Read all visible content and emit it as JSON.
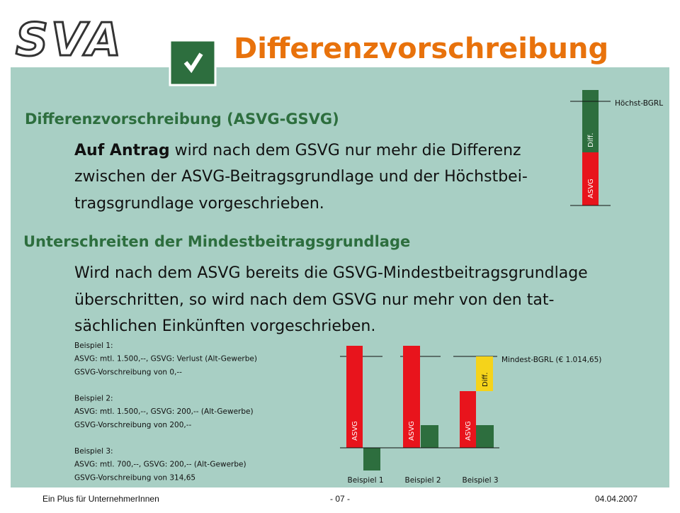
{
  "header": {
    "logo": "SVA",
    "title": "Differenzvorschreibung"
  },
  "sections": [
    {
      "heading": "Differenzvorschreibung (ASVG-GSVG)",
      "lead": "Auf Antrag",
      "lines": [
        " wird nach dem GSVG nur mehr die Differenz",
        "zwischen der ASVG-Beitragsgrundlage und der Höchstbei-",
        "tragsgrundlage vorgeschrieben."
      ]
    },
    {
      "heading": "Unterschreiten der Mindestbeitragsgrundlage",
      "lines": [
        "Wird nach dem ASVG bereits die GSVG-Mindestbeitragsgrundlage",
        "überschritten, so wird nach dem GSVG nur mehr von den tat-",
        "sächlichen Einkünften vorgeschrieben."
      ]
    }
  ],
  "examples": [
    [
      "Beispiel 1:",
      "ASVG: mtl. 1.500,--, GSVG: Verlust (Alt-Gewerbe)",
      "GSVG-Vorschreibung von 0,--"
    ],
    [
      "Beispiel 2:",
      "ASVG: mtl. 1.500,--, GSVG: 200,-- (Alt-Gewerbe)",
      "GSVG-Vorschreibung von 200,--"
    ],
    [
      "Beispiel 3:",
      "ASVG: mtl. 700,--, GSVG: 200,-- (Alt-Gewerbe)",
      "GSVG-Vorschreibung von 314,65"
    ]
  ],
  "diagram1": {
    "line_label": "Höchst-BGRL",
    "top_label": "Diff.",
    "bottom_label": "ASVG"
  },
  "diagram2": {
    "line_label": "Mindest-BGRL (€ 1.014,65)",
    "bar_label": "ASVG",
    "diff_label": "Diff.",
    "categories": [
      "Beispiel 1",
      "Beispiel 2",
      "Beispiel 3"
    ]
  },
  "footer": {
    "left": "Ein Plus für UnternehmerInnen",
    "center": "- 07 -",
    "right": "04.04.2007"
  }
}
